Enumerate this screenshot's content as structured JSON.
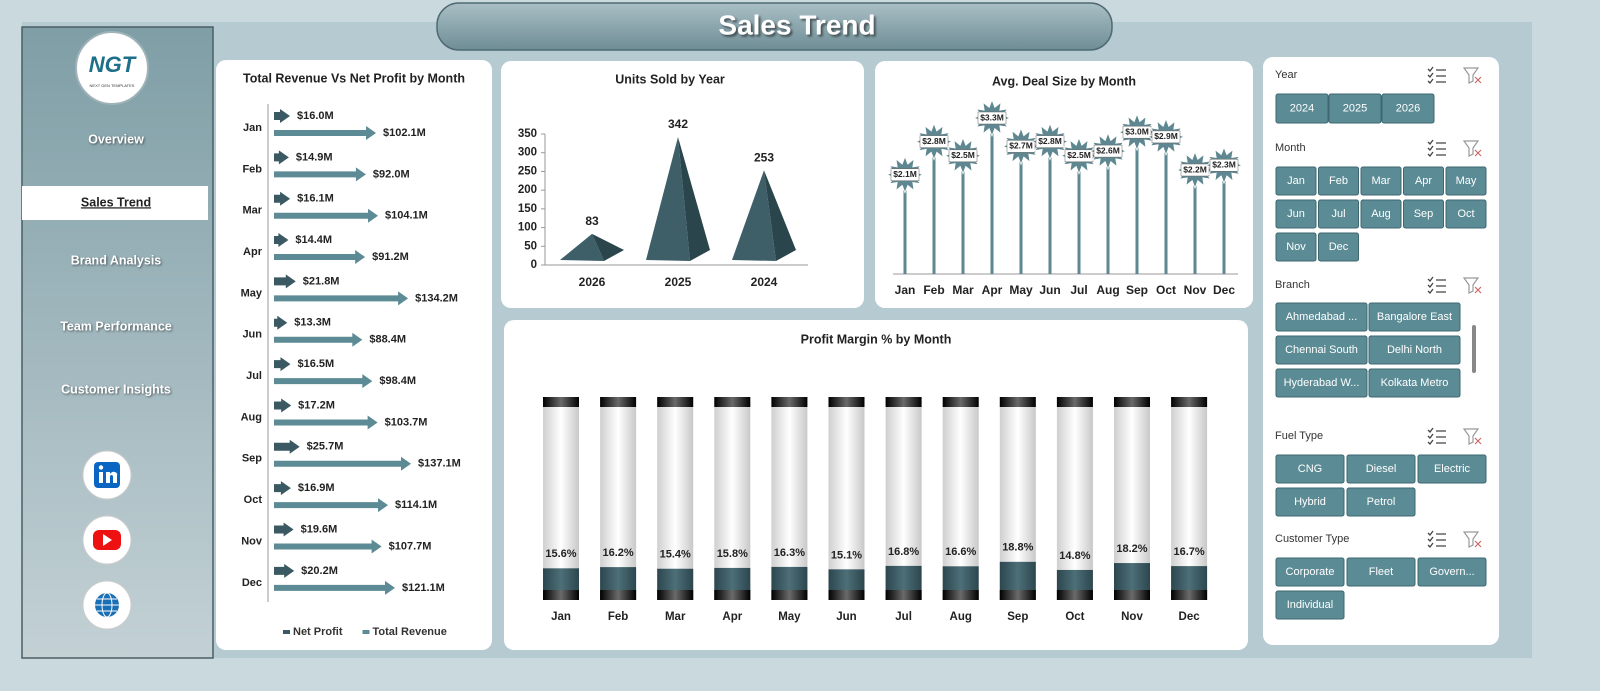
{
  "header": {
    "title": "Sales Trend"
  },
  "sidebar": {
    "logo": "NGT",
    "logo_sub": "NEXT GEN TEMPLATES",
    "nav": [
      "Overview",
      "Sales Trend",
      "Brand Analysis",
      "Team Performance",
      "Customer Insights"
    ],
    "active": 1
  },
  "chart_data": [
    {
      "type": "arrow-bar",
      "title": "Total Revenue Vs Net Profit by Month",
      "categories": [
        "Jan",
        "Feb",
        "Mar",
        "Apr",
        "May",
        "Jun",
        "Jul",
        "Aug",
        "Sep",
        "Oct",
        "Nov",
        "Dec"
      ],
      "series": [
        {
          "name": "Net Profit",
          "color": "#3b5962",
          "values": [
            16.0,
            14.9,
            16.1,
            14.4,
            21.8,
            13.3,
            16.5,
            17.2,
            25.7,
            16.9,
            19.6,
            20.2
          ],
          "value_labels": [
            "$16.0M",
            "$14.9M",
            "$16.1M",
            "$14.4M",
            "$21.8M",
            "$13.3M",
            "$16.5M",
            "$17.2M",
            "$25.7M",
            "$16.9M",
            "$19.6M",
            "$20.2M"
          ]
        },
        {
          "name": "Total Revenue",
          "color": "#5d8b95",
          "values": [
            102.1,
            92.0,
            104.1,
            91.2,
            134.2,
            88.4,
            98.4,
            103.7,
            137.1,
            114.1,
            107.7,
            121.1
          ],
          "value_labels": [
            "$102.1M",
            "$92.0M",
            "$104.1M",
            "$91.2M",
            "$134.2M",
            "$88.4M",
            "$98.4M",
            "$103.7M",
            "$137.1M",
            "$114.1M",
            "$107.7M",
            "$121.1M"
          ]
        }
      ]
    },
    {
      "type": "pyramid",
      "title": "Units Sold by Year",
      "categories": [
        "2026",
        "2025",
        "2024"
      ],
      "values": [
        83,
        342,
        253
      ],
      "color": "#3f5f68",
      "ylim": [
        0,
        350
      ],
      "yticks": [
        0,
        50,
        100,
        150,
        200,
        250,
        300,
        350
      ]
    },
    {
      "type": "lollipop",
      "title": "Avg. Deal Size by Month",
      "categories": [
        "Jan",
        "Feb",
        "Mar",
        "Apr",
        "May",
        "Jun",
        "Jul",
        "Aug",
        "Sep",
        "Oct",
        "Nov",
        "Dec"
      ],
      "values": [
        2.1,
        2.8,
        2.5,
        3.3,
        2.7,
        2.8,
        2.5,
        2.6,
        3.0,
        2.9,
        2.2,
        2.3
      ],
      "value_labels": [
        "$2.1M",
        "$2.8M",
        "$2.5M",
        "$3.3M",
        "$2.7M",
        "$2.8M",
        "$2.5M",
        "$2.6M",
        "$3.0M",
        "$2.9M",
        "$2.2M",
        "$2.3M"
      ],
      "color": "#5e8791"
    },
    {
      "type": "tube",
      "title": "Profit Margin % by Month",
      "categories": [
        "Jan",
        "Feb",
        "Mar",
        "Apr",
        "May",
        "Jun",
        "Jul",
        "Aug",
        "Sep",
        "Oct",
        "Nov",
        "Dec"
      ],
      "values": [
        15.6,
        16.2,
        15.4,
        15.8,
        16.3,
        15.1,
        16.8,
        16.6,
        18.8,
        14.8,
        18.2,
        16.7
      ],
      "value_labels": [
        "15.6%",
        "16.2%",
        "15.4%",
        "15.8%",
        "16.3%",
        "15.1%",
        "16.8%",
        "16.6%",
        "18.8%",
        "14.8%",
        "18.2%",
        "16.7%"
      ],
      "ylim": [
        0,
        100
      ],
      "color": "#3d5d66"
    }
  ],
  "slicers": [
    {
      "title": "Year",
      "items": [
        "2024",
        "2025",
        "2026"
      ]
    },
    {
      "title": "Month",
      "items": [
        "Jan",
        "Feb",
        "Mar",
        "Apr",
        "May",
        "Jun",
        "Jul",
        "Aug",
        "Sep",
        "Oct",
        "Nov",
        "Dec"
      ]
    },
    {
      "title": "Branch",
      "items": [
        "Ahmedabad ...",
        "Bangalore East",
        "Chennai South",
        "Delhi North",
        "Hyderabad W...",
        "Kolkata Metro"
      ]
    },
    {
      "title": "Fuel Type",
      "items": [
        "CNG",
        "Diesel",
        "Electric",
        "Hybrid",
        "Petrol"
      ]
    },
    {
      "title": "Customer Type",
      "items": [
        "Corporate",
        "Fleet",
        "Govern...",
        "Individual"
      ]
    }
  ]
}
